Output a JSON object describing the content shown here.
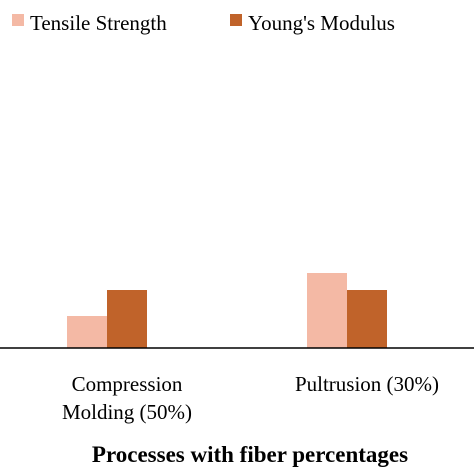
{
  "chart_data": {
    "type": "bar",
    "title": "",
    "xlabel": "Processes with fiber percentages",
    "ylabel": "",
    "categories": [
      [
        "Compression",
        "Molding (50%)"
      ],
      [
        "Pultrusion (30%)"
      ]
    ],
    "series": [
      {
        "name": "Tensile Strength",
        "color": "#f4b9a5",
        "values": [
          32,
          75
        ]
      },
      {
        "name": "Young's Modulus",
        "color": "#c0632a",
        "values": [
          58,
          58
        ]
      }
    ],
    "ylim": [
      0,
      320
    ],
    "grid": false,
    "legend_position": "top"
  }
}
